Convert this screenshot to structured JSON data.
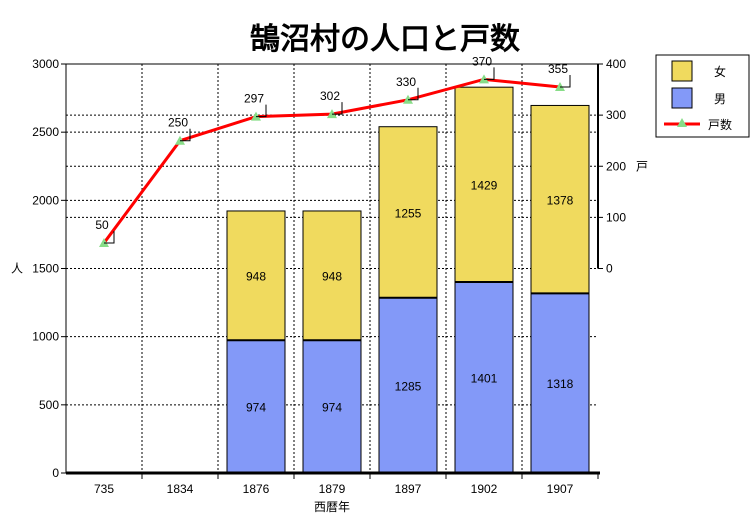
{
  "chart_data": {
    "type": "bar",
    "title": "鵠沼村の人口と戸数",
    "xlabel": "西暦年",
    "ylabel": "人",
    "y2label": "戸",
    "categories": [
      "735",
      "1834",
      "1876",
      "1879",
      "1897",
      "1902",
      "1907"
    ],
    "ylim": [
      0,
      3000
    ],
    "yticks": [
      0,
      500,
      1000,
      1500,
      2000,
      2500,
      3000
    ],
    "y2lim": [
      0,
      400
    ],
    "y2ticks": [
      0,
      100,
      200,
      300,
      400
    ],
    "stacked": true,
    "grid": true,
    "legend_position": "top-right",
    "series": [
      {
        "name": "男",
        "type": "bar",
        "color": "#8399f8",
        "values": [
          null,
          null,
          974,
          974,
          1285,
          1401,
          1318
        ]
      },
      {
        "name": "女",
        "type": "bar",
        "color": "#f0da5e",
        "values": [
          null,
          null,
          948,
          948,
          1255,
          1429,
          1378
        ]
      },
      {
        "name": "戸数",
        "type": "line",
        "axis": "right",
        "color": "#ff0000",
        "marker_color": "#88dd88",
        "values": [
          50,
          250,
          297,
          302,
          330,
          370,
          355
        ]
      }
    ]
  }
}
